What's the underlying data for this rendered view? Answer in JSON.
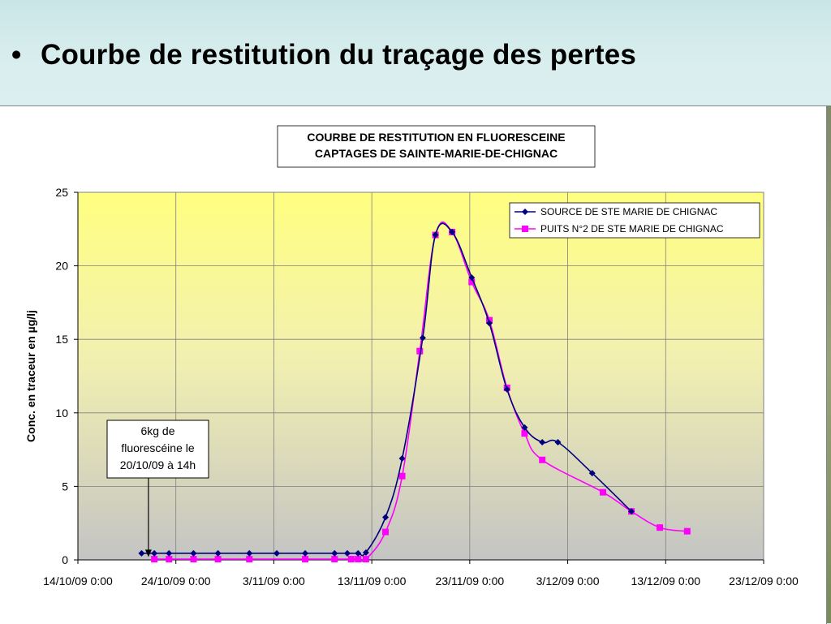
{
  "slide": {
    "bullet": "•",
    "title": "Courbe de restitution du traçage des pertes"
  },
  "chart_data": {
    "type": "line",
    "title_lines": [
      "COURBE DE RESTITUTION EN FLUORESCEINE",
      "CAPTAGES DE SAINTE-MARIE-DE-CHIGNAC"
    ],
    "ylabel": "Conc. en traceur en µg/lj",
    "xlabel": "",
    "x_ticks": [
      "14/10/09 0:00",
      "24/10/09 0:00",
      "3/11/09 0:00",
      "13/11/09 0:00",
      "23/11/09 0:00",
      "3/12/09 0:00",
      "13/12/09 0:00",
      "23/12/09 0:00"
    ],
    "xlim_days": [
      0,
      70
    ],
    "ylim": [
      0,
      25
    ],
    "y_ticks": [
      0,
      5,
      10,
      15,
      20,
      25
    ],
    "grid": true,
    "legend_position": "top-right",
    "series": [
      {
        "name": "SOURCE DE STE MARIE DE CHIGNAC",
        "color": "#00007f",
        "marker": "diamond",
        "x_days": [
          6.5,
          7.8,
          9.3,
          11.8,
          14.3,
          17.5,
          20.3,
          23.2,
          26.2,
          27.5,
          28.6,
          29.4,
          31.4,
          33.1,
          35.2,
          36.5,
          38.2,
          40.2,
          42.0,
          43.8,
          45.6,
          47.4,
          49.0,
          52.5,
          56.5
        ],
        "values": [
          0.45,
          0.45,
          0.45,
          0.45,
          0.45,
          0.45,
          0.45,
          0.45,
          0.45,
          0.45,
          0.45,
          0.5,
          2.9,
          6.9,
          15.1,
          22.1,
          22.3,
          19.2,
          16.1,
          11.6,
          9.0,
          8.0,
          8.0,
          5.9,
          3.3
        ]
      },
      {
        "name": "PUITS N°2 DE STE MARIE DE CHIGNAC",
        "color": "#ff00ff",
        "marker": "square",
        "x_days": [
          7.8,
          9.3,
          11.8,
          14.3,
          17.5,
          23.2,
          26.2,
          27.9,
          28.6,
          29.4,
          31.4,
          33.1,
          34.9,
          36.5,
          38.2,
          40.2,
          42.0,
          43.8,
          45.6,
          47.4,
          53.6,
          56.5,
          59.4,
          62.2
        ],
        "values": [
          0.05,
          0.05,
          0.05,
          0.05,
          0.05,
          0.05,
          0.05,
          0.05,
          0.05,
          0.05,
          1.9,
          5.7,
          14.2,
          22.1,
          22.3,
          18.9,
          16.3,
          11.7,
          8.6,
          6.8,
          4.6,
          3.3,
          2.2,
          1.95
        ]
      }
    ],
    "annotation": {
      "lines": [
        "6kg de",
        "fluorescéine le",
        "20/10/09 à 14h"
      ],
      "arrow_to_day": 7.2,
      "arrow_to_value": 0.2
    }
  }
}
